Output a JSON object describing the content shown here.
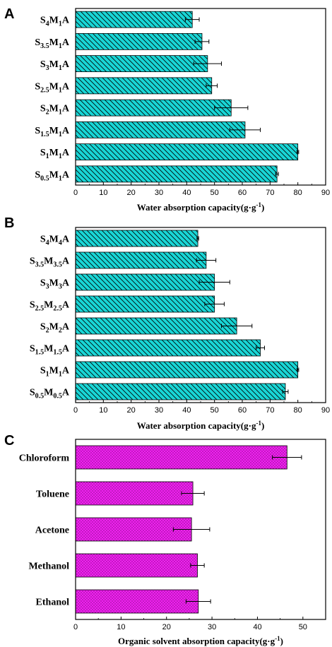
{
  "panels": [
    {
      "letter": "A",
      "chart_data": {
        "type": "bar",
        "orientation": "horizontal",
        "categories": [
          {
            "base": "S",
            "parts": [
              [
                "4",
                "sub"
              ],
              [
                "M",
                ""
              ],
              [
                "1",
                "sub"
              ],
              [
                "A",
                ""
              ]
            ]
          },
          {
            "base": "S",
            "parts": [
              [
                "3.5",
                "sub"
              ],
              [
                "M",
                ""
              ],
              [
                "1",
                "sub"
              ],
              [
                "A",
                ""
              ]
            ]
          },
          {
            "base": "S",
            "parts": [
              [
                "3",
                "sub"
              ],
              [
                "M",
                ""
              ],
              [
                "1",
                "sub"
              ],
              [
                "A",
                ""
              ]
            ]
          },
          {
            "base": "S",
            "parts": [
              [
                "2.5",
                "sub"
              ],
              [
                "M",
                ""
              ],
              [
                "1",
                "sub"
              ],
              [
                "A",
                ""
              ]
            ]
          },
          {
            "base": "S",
            "parts": [
              [
                "2",
                "sub"
              ],
              [
                "M",
                ""
              ],
              [
                "1",
                "sub"
              ],
              [
                "A",
                ""
              ]
            ]
          },
          {
            "base": "S",
            "parts": [
              [
                "1.5",
                "sub"
              ],
              [
                "M",
                ""
              ],
              [
                "1",
                "sub"
              ],
              [
                "A",
                ""
              ]
            ]
          },
          {
            "base": "S",
            "parts": [
              [
                "1",
                "sub"
              ],
              [
                "M",
                ""
              ],
              [
                "1",
                "sub"
              ],
              [
                "A",
                ""
              ]
            ]
          },
          {
            "base": "S",
            "parts": [
              [
                "0.5",
                "sub"
              ],
              [
                "M",
                ""
              ],
              [
                "1",
                "sub"
              ],
              [
                "A",
                ""
              ]
            ]
          }
        ],
        "values": [
          42,
          45.5,
          47.5,
          49,
          56,
          61,
          80,
          72.5
        ],
        "errors": [
          2.5,
          2.5,
          5,
          2,
          6,
          5.5,
          0.3,
          0.5
        ],
        "xlim": [
          0,
          90
        ],
        "xticks": [
          0,
          10,
          20,
          30,
          40,
          50,
          60,
          70,
          80,
          90
        ],
        "xlabel": "Water absorption capacity(g·g",
        "xlabel_sup": "-1",
        "xlabel_close": ")",
        "bar_color": "#19d6d6",
        "hatch": "backslash"
      }
    },
    {
      "letter": "B",
      "chart_data": {
        "type": "bar",
        "orientation": "horizontal",
        "categories": [
          {
            "base": "S",
            "parts": [
              [
                "4",
                "sub"
              ],
              [
                "M",
                ""
              ],
              [
                "4",
                "sub"
              ],
              [
                "A",
                ""
              ]
            ]
          },
          {
            "base": "S",
            "parts": [
              [
                "3.5",
                "sub"
              ],
              [
                "M",
                ""
              ],
              [
                "3.5",
                "sub"
              ],
              [
                "A",
                ""
              ]
            ]
          },
          {
            "base": "S",
            "parts": [
              [
                "3",
                "sub"
              ],
              [
                "M",
                ""
              ],
              [
                "3",
                "sub"
              ],
              [
                "A",
                ""
              ]
            ]
          },
          {
            "base": "S",
            "parts": [
              [
                "2.5",
                "sub"
              ],
              [
                "M",
                ""
              ],
              [
                "2.5",
                "sub"
              ],
              [
                "A",
                ""
              ]
            ]
          },
          {
            "base": "S",
            "parts": [
              [
                "2",
                "sub"
              ],
              [
                "M",
                ""
              ],
              [
                "2",
                "sub"
              ],
              [
                "A",
                ""
              ]
            ]
          },
          {
            "base": "S",
            "parts": [
              [
                "1.5",
                "sub"
              ],
              [
                "M",
                ""
              ],
              [
                "1.5",
                "sub"
              ],
              [
                "A",
                ""
              ]
            ]
          },
          {
            "base": "S",
            "parts": [
              [
                "1",
                "sub"
              ],
              [
                "M",
                ""
              ],
              [
                "1",
                "sub"
              ],
              [
                "A",
                ""
              ]
            ]
          },
          {
            "base": "S",
            "parts": [
              [
                "0.5",
                "sub"
              ],
              [
                "M",
                ""
              ],
              [
                "0.5",
                "sub"
              ],
              [
                "A",
                ""
              ]
            ]
          }
        ],
        "values": [
          44,
          47,
          50,
          50,
          58,
          66.5,
          80,
          75.5
        ],
        "errors": [
          0.3,
          3.5,
          5.5,
          3.5,
          5.5,
          1.5,
          0.3,
          1
        ],
        "xlim": [
          0,
          90
        ],
        "xticks": [
          0,
          10,
          20,
          30,
          40,
          50,
          60,
          70,
          80,
          90
        ],
        "xlabel": "Water absorption capacity(g·g",
        "xlabel_sup": "-1",
        "xlabel_close": ")",
        "bar_color": "#19d6d6",
        "hatch": "backslash"
      }
    },
    {
      "letter": "C",
      "chart_data": {
        "type": "bar",
        "orientation": "horizontal",
        "categories": [
          {
            "base": "Chloroform",
            "parts": []
          },
          {
            "base": "Toluene",
            "parts": []
          },
          {
            "base": "Acetone",
            "parts": []
          },
          {
            "base": "Methanol",
            "parts": []
          },
          {
            "base": "Ethanol",
            "parts": []
          }
        ],
        "values": [
          46.5,
          25.8,
          25.5,
          26.8,
          27
        ],
        "errors": [
          3.2,
          2.5,
          4,
          1.5,
          2.7
        ],
        "xlim": [
          0,
          55
        ],
        "xticks": [
          0,
          10,
          20,
          30,
          40,
          50
        ],
        "xlabel": "Organic solvent absorption capacity(g·g",
        "xlabel_sup": "-1",
        "xlabel_close": ")",
        "bar_color": "#ee22ee",
        "hatch": "dots"
      }
    }
  ]
}
